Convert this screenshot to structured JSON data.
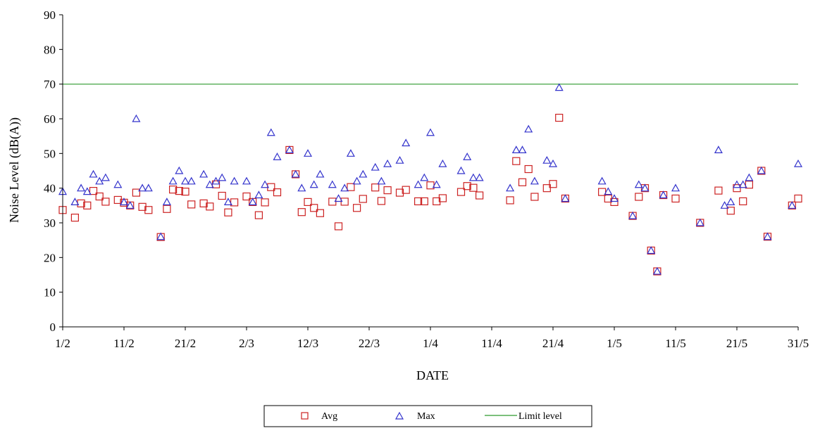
{
  "chart_data": {
    "type": "scatter",
    "xlabel": "DATE",
    "ylabel": "Noise Level (dB(A))",
    "xlim": [
      "2004-02-01",
      "2004-05-31"
    ],
    "ylim": [
      0,
      90
    ],
    "y_ticks": [
      0,
      10,
      20,
      30,
      40,
      50,
      60,
      70,
      80,
      90
    ],
    "x_ticks": [
      {
        "label": "1/2",
        "date": "2004-02-01"
      },
      {
        "label": "11/2",
        "date": "2004-02-11"
      },
      {
        "label": "21/2",
        "date": "2004-02-21"
      },
      {
        "label": "2/3",
        "date": "2004-03-02"
      },
      {
        "label": "12/3",
        "date": "2004-03-12"
      },
      {
        "label": "22/3",
        "date": "2004-03-22"
      },
      {
        "label": "1/4",
        "date": "2004-04-01"
      },
      {
        "label": "11/4",
        "date": "2004-04-11"
      },
      {
        "label": "21/4",
        "date": "2004-04-21"
      },
      {
        "label": "1/5",
        "date": "2004-05-01"
      },
      {
        "label": "11/5",
        "date": "2004-05-11"
      },
      {
        "label": "21/5",
        "date": "2004-05-21"
      },
      {
        "label": "31/5",
        "date": "2004-05-31"
      }
    ],
    "grid": false,
    "legend_position": "bottom",
    "colors": {
      "avg": "#cc2222",
      "max": "#3333cc",
      "limit": "#2e9a2e"
    },
    "series": [
      {
        "name": "Avg",
        "marker": "square",
        "points": [
          [
            "2004-02-01",
            33.7
          ],
          [
            "2004-02-03",
            31.5
          ],
          [
            "2004-02-04",
            35.6
          ],
          [
            "2004-02-05",
            35
          ],
          [
            "2004-02-06",
            39.2
          ],
          [
            "2004-02-07",
            37.6
          ],
          [
            "2004-02-08",
            36.1
          ],
          [
            "2004-02-10",
            36.6
          ],
          [
            "2004-02-11",
            35.8
          ],
          [
            "2004-02-12",
            35
          ],
          [
            "2004-02-13",
            38.7
          ],
          [
            "2004-02-14",
            34.6
          ],
          [
            "2004-02-15",
            33.7
          ],
          [
            "2004-02-17",
            25.9
          ],
          [
            "2004-02-18",
            34
          ],
          [
            "2004-02-19",
            39.6
          ],
          [
            "2004-02-20",
            39.2
          ],
          [
            "2004-02-21",
            39
          ],
          [
            "2004-02-22",
            35.3
          ],
          [
            "2004-02-24",
            35.6
          ],
          [
            "2004-02-25",
            34.7
          ],
          [
            "2004-02-26",
            41.1
          ],
          [
            "2004-02-27",
            37.8
          ],
          [
            "2004-02-28",
            33
          ],
          [
            "2004-02-29",
            35.9
          ],
          [
            "2004-03-02",
            37.6
          ],
          [
            "2004-03-03",
            36
          ],
          [
            "2004-03-04",
            32.2
          ],
          [
            "2004-03-05",
            35.9
          ],
          [
            "2004-03-06",
            40.3
          ],
          [
            "2004-03-07",
            38.8
          ],
          [
            "2004-03-09",
            51
          ],
          [
            "2004-03-10",
            44
          ],
          [
            "2004-03-11",
            33.1
          ],
          [
            "2004-03-12",
            36
          ],
          [
            "2004-03-13",
            34.3
          ],
          [
            "2004-03-14",
            32.8
          ],
          [
            "2004-03-16",
            36.1
          ],
          [
            "2004-03-17",
            29
          ],
          [
            "2004-03-18",
            36.1
          ],
          [
            "2004-03-19",
            40.3
          ],
          [
            "2004-03-20",
            34.3
          ],
          [
            "2004-03-21",
            36.9
          ],
          [
            "2004-03-23",
            40.2
          ],
          [
            "2004-03-24",
            36.3
          ],
          [
            "2004-03-25",
            39.4
          ],
          [
            "2004-03-27",
            38.7
          ],
          [
            "2004-03-28",
            39.5
          ],
          [
            "2004-03-30",
            36.2
          ],
          [
            "2004-03-31",
            36.2
          ],
          [
            "2004-04-01",
            40.8
          ],
          [
            "2004-04-02",
            36.2
          ],
          [
            "2004-04-03",
            37.1
          ],
          [
            "2004-04-06",
            38.9
          ],
          [
            "2004-04-07",
            40.6
          ],
          [
            "2004-04-08",
            40.1
          ],
          [
            "2004-04-09",
            37.9
          ],
          [
            "2004-04-14",
            36.5
          ],
          [
            "2004-04-15",
            47.8
          ],
          [
            "2004-04-16",
            41.7
          ],
          [
            "2004-04-17",
            45.5
          ],
          [
            "2004-04-18",
            37.5
          ],
          [
            "2004-04-20",
            40
          ],
          [
            "2004-04-21",
            41.2
          ],
          [
            "2004-04-22",
            60.3
          ],
          [
            "2004-04-23",
            37
          ],
          [
            "2004-04-29",
            38.9
          ],
          [
            "2004-04-30",
            37
          ],
          [
            "2004-05-01",
            36
          ],
          [
            "2004-05-04",
            32
          ],
          [
            "2004-05-05",
            37.5
          ],
          [
            "2004-05-06",
            40
          ],
          [
            "2004-05-07",
            22
          ],
          [
            "2004-05-08",
            16
          ],
          [
            "2004-05-09",
            38
          ],
          [
            "2004-05-11",
            37
          ],
          [
            "2004-05-15",
            30
          ],
          [
            "2004-05-18",
            39.3
          ],
          [
            "2004-05-20",
            33.5
          ],
          [
            "2004-05-21",
            40
          ],
          [
            "2004-05-22",
            36.2
          ],
          [
            "2004-05-23",
            41
          ],
          [
            "2004-05-25",
            45
          ],
          [
            "2004-05-26",
            26
          ],
          [
            "2004-05-30",
            35
          ],
          [
            "2004-05-31",
            37
          ]
        ]
      },
      {
        "name": "Max",
        "marker": "triangle",
        "points": [
          [
            "2004-02-01",
            39
          ],
          [
            "2004-02-03",
            36
          ],
          [
            "2004-02-04",
            40
          ],
          [
            "2004-02-05",
            39
          ],
          [
            "2004-02-06",
            44
          ],
          [
            "2004-02-07",
            42
          ],
          [
            "2004-02-08",
            43
          ],
          [
            "2004-02-10",
            41
          ],
          [
            "2004-02-11",
            36
          ],
          [
            "2004-02-12",
            35
          ],
          [
            "2004-02-13",
            60
          ],
          [
            "2004-02-14",
            40
          ],
          [
            "2004-02-15",
            40
          ],
          [
            "2004-02-17",
            26
          ],
          [
            "2004-02-18",
            36
          ],
          [
            "2004-02-19",
            42
          ],
          [
            "2004-02-20",
            45
          ],
          [
            "2004-02-21",
            42
          ],
          [
            "2004-02-22",
            42
          ],
          [
            "2004-02-24",
            44
          ],
          [
            "2004-02-25",
            41
          ],
          [
            "2004-02-26",
            42
          ],
          [
            "2004-02-27",
            43
          ],
          [
            "2004-02-28",
            36
          ],
          [
            "2004-02-29",
            42
          ],
          [
            "2004-03-02",
            42
          ],
          [
            "2004-03-03",
            36
          ],
          [
            "2004-03-04",
            38
          ],
          [
            "2004-03-05",
            41
          ],
          [
            "2004-03-06",
            56
          ],
          [
            "2004-03-07",
            49
          ],
          [
            "2004-03-09",
            51
          ],
          [
            "2004-03-10",
            44
          ],
          [
            "2004-03-11",
            40
          ],
          [
            "2004-03-12",
            50
          ],
          [
            "2004-03-13",
            41
          ],
          [
            "2004-03-14",
            44
          ],
          [
            "2004-03-16",
            41
          ],
          [
            "2004-03-17",
            37
          ],
          [
            "2004-03-18",
            40
          ],
          [
            "2004-03-19",
            50
          ],
          [
            "2004-03-20",
            42
          ],
          [
            "2004-03-21",
            44
          ],
          [
            "2004-03-23",
            46
          ],
          [
            "2004-03-24",
            42
          ],
          [
            "2004-03-25",
            47
          ],
          [
            "2004-03-27",
            48
          ],
          [
            "2004-03-28",
            53
          ],
          [
            "2004-03-30",
            41
          ],
          [
            "2004-03-31",
            43
          ],
          [
            "2004-04-01",
            56
          ],
          [
            "2004-04-02",
            41
          ],
          [
            "2004-04-03",
            47
          ],
          [
            "2004-04-06",
            45
          ],
          [
            "2004-04-07",
            49
          ],
          [
            "2004-04-08",
            43
          ],
          [
            "2004-04-09",
            43
          ],
          [
            "2004-04-14",
            40
          ],
          [
            "2004-04-15",
            51
          ],
          [
            "2004-04-16",
            51
          ],
          [
            "2004-04-17",
            57
          ],
          [
            "2004-04-18",
            42
          ],
          [
            "2004-04-20",
            48
          ],
          [
            "2004-04-21",
            47
          ],
          [
            "2004-04-22",
            69
          ],
          [
            "2004-04-23",
            37
          ],
          [
            "2004-04-29",
            42
          ],
          [
            "2004-04-30",
            39
          ],
          [
            "2004-05-01",
            37
          ],
          [
            "2004-05-04",
            32
          ],
          [
            "2004-05-05",
            41
          ],
          [
            "2004-05-06",
            40
          ],
          [
            "2004-05-07",
            22
          ],
          [
            "2004-05-08",
            16
          ],
          [
            "2004-05-09",
            38
          ],
          [
            "2004-05-11",
            40
          ],
          [
            "2004-05-15",
            30
          ],
          [
            "2004-05-18",
            51
          ],
          [
            "2004-05-19",
            35
          ],
          [
            "2004-05-20",
            36
          ],
          [
            "2004-05-21",
            41
          ],
          [
            "2004-05-22",
            41
          ],
          [
            "2004-05-23",
            43
          ],
          [
            "2004-05-25",
            45
          ],
          [
            "2004-05-26",
            26
          ],
          [
            "2004-05-30",
            35
          ],
          [
            "2004-05-31",
            47
          ]
        ]
      },
      {
        "name": "Limit level",
        "marker": "line",
        "y": 70
      }
    ]
  }
}
